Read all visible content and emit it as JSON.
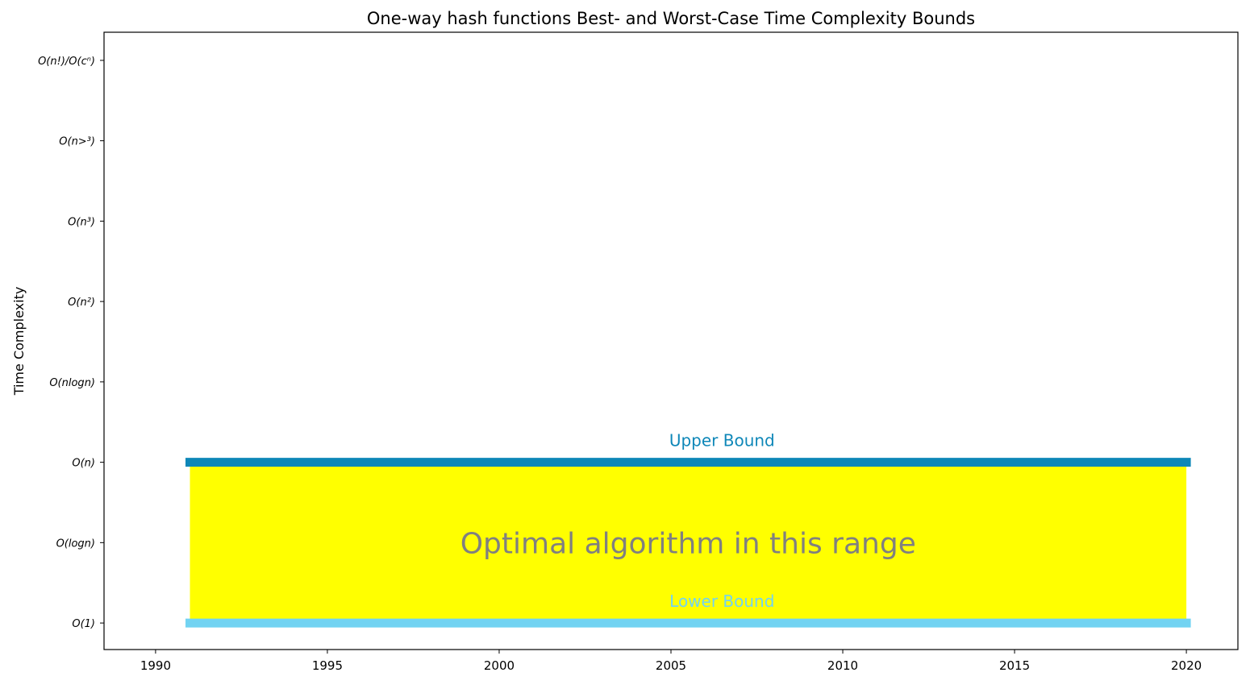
{
  "chart_data": {
    "type": "area",
    "title": "One-way hash functions Best- and Worst-Case Time Complexity Bounds",
    "xlabel": "",
    "ylabel": "Time Complexity",
    "xlim": [
      1988.5,
      2021.5
    ],
    "ylim": [
      -0.33,
      7.35
    ],
    "x_ticks": [
      1990,
      1995,
      2000,
      2005,
      2010,
      2015,
      2020
    ],
    "y_ticks": [
      {
        "value": 0,
        "label": "O(1)"
      },
      {
        "value": 1,
        "label": "O(logn)"
      },
      {
        "value": 2,
        "label": "O(n)"
      },
      {
        "value": 3,
        "label": "O(nlogn)"
      },
      {
        "value": 4,
        "label": "O(n²)"
      },
      {
        "value": 5,
        "label": "O(n³)"
      },
      {
        "value": 6,
        "label": "O(n>³)"
      },
      {
        "value": 7,
        "label": "O(n!)/O(cⁿ)"
      }
    ],
    "series": [
      {
        "name": "Upper Bound",
        "x": [
          1991,
          2020
        ],
        "y": 2,
        "color": "#0e87b8"
      },
      {
        "name": "Lower Bound",
        "x": [
          1991,
          2020
        ],
        "y": 0,
        "color": "#72d3f2"
      }
    ],
    "region": {
      "x": [
        1991,
        2020
      ],
      "y": [
        0,
        2
      ],
      "color": "#ffff00",
      "label": "Optimal algorithm in this range",
      "label_color": "#808080"
    },
    "grid": false
  }
}
